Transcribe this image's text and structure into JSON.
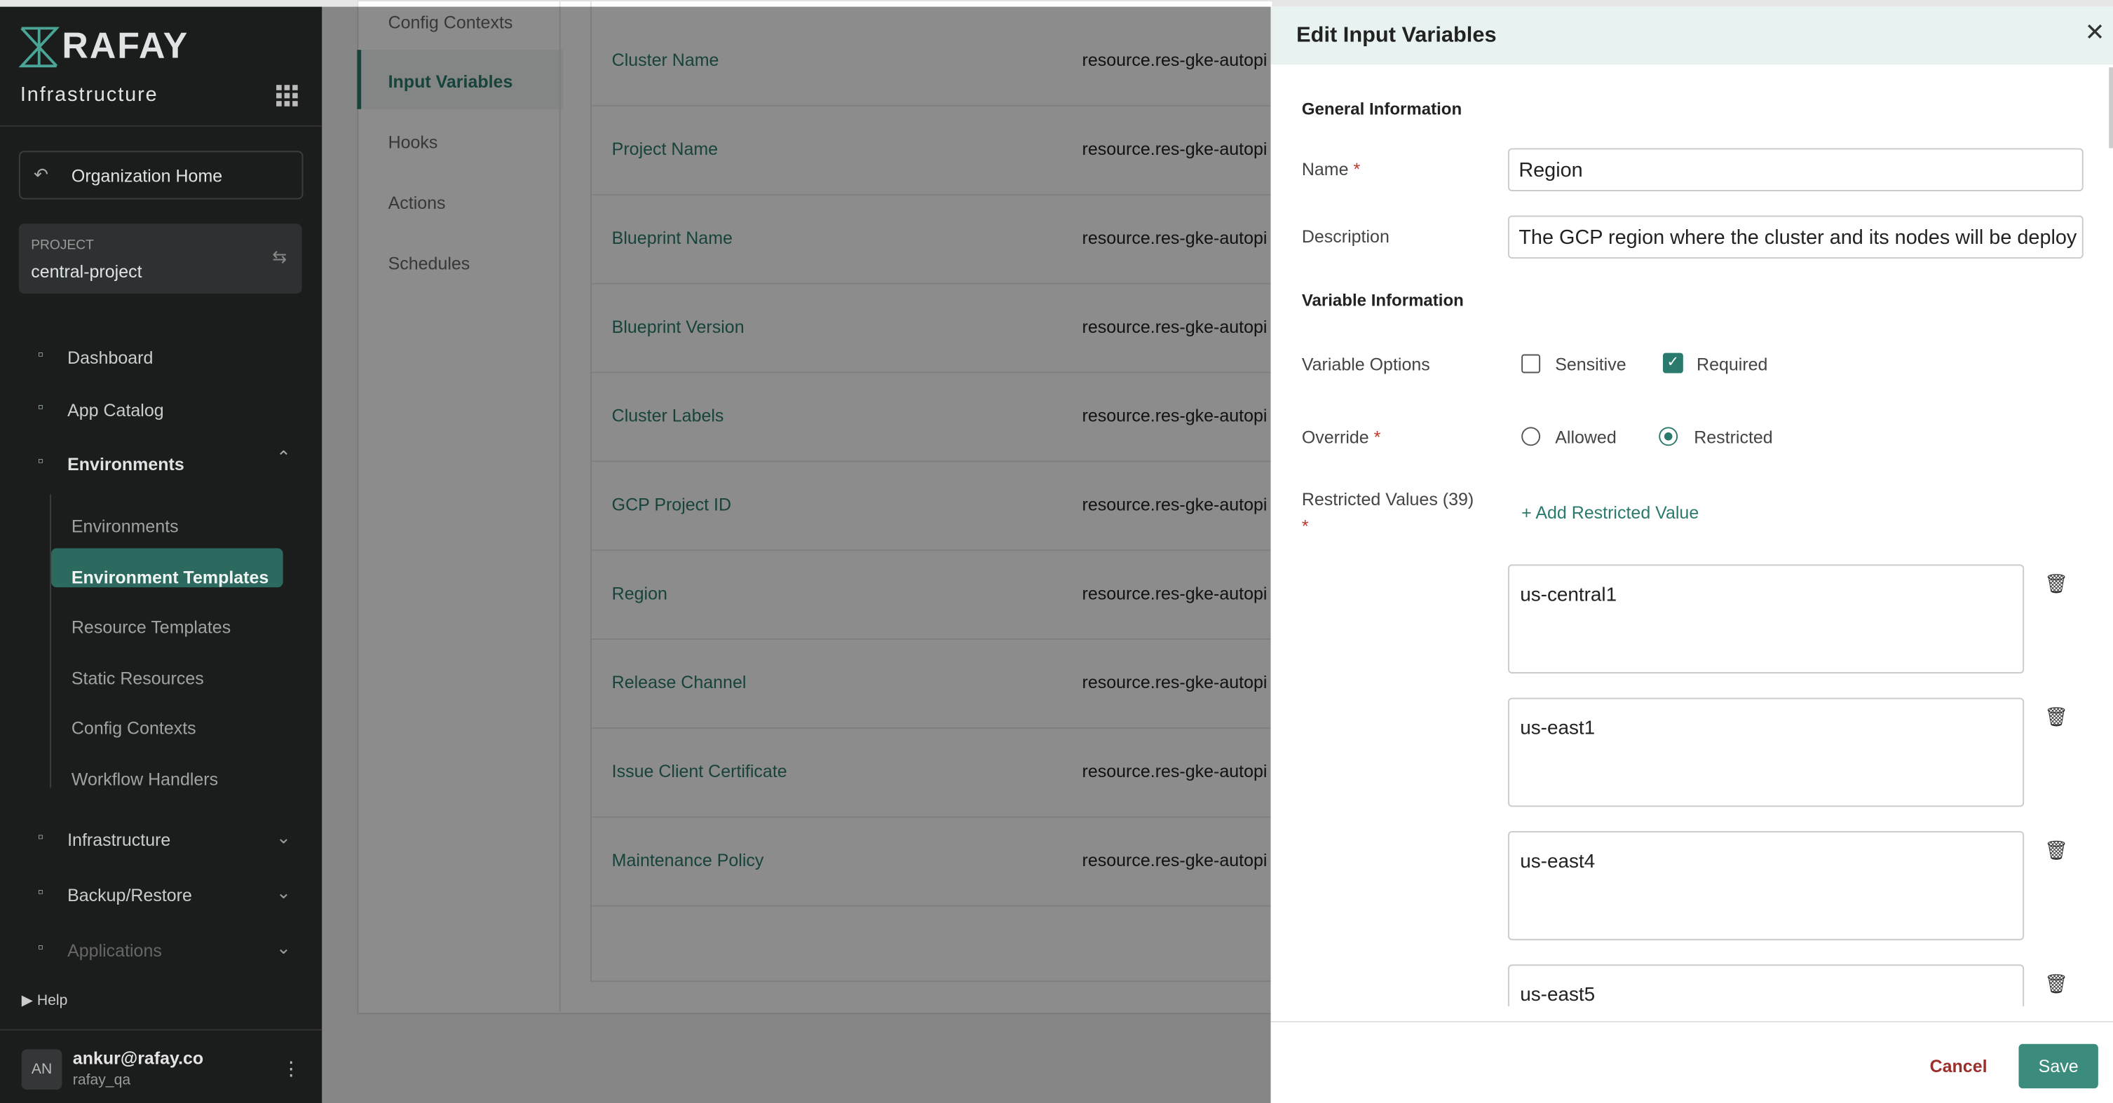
{
  "sidebar": {
    "brand": "RAFAY",
    "app": "Infrastructure",
    "org_home": "Organization Home",
    "project_label": "PROJECT",
    "project_name": "central-project",
    "nav": [
      "Dashboard",
      "App Catalog",
      "Environments"
    ],
    "env_items": [
      "Environments",
      "Environment Templates",
      "Resource Templates",
      "Static Resources",
      "Config Contexts",
      "Workflow Handlers"
    ],
    "nav2": [
      "Infrastructure",
      "Backup/Restore",
      "Applications"
    ],
    "help": "Help",
    "user": {
      "initials": "AN",
      "email": "ankur@rafay.co",
      "org": "rafay_qa"
    }
  },
  "tabs": [
    "Config Contexts",
    "Input Variables",
    "Hooks",
    "Actions",
    "Schedules"
  ],
  "variables": [
    [
      "Cluster Name",
      "resource.res-gke-autopi"
    ],
    [
      "Project Name",
      "resource.res-gke-autopi"
    ],
    [
      "Blueprint Name",
      "resource.res-gke-autopi"
    ],
    [
      "Blueprint Version",
      "resource.res-gke-autopi"
    ],
    [
      "Cluster Labels",
      "resource.res-gke-autopi"
    ],
    [
      "GCP Project ID",
      "resource.res-gke-autopi"
    ],
    [
      "Region",
      "resource.res-gke-autopi"
    ],
    [
      "Release Channel",
      "resource.res-gke-autopi"
    ],
    [
      "Issue Client Certificate",
      "resource.res-gke-autopi"
    ],
    [
      "Maintenance Policy",
      "resource.res-gke-autopi"
    ]
  ],
  "panel": {
    "title": "Edit Input Variables",
    "general": "General Information",
    "name_label": "Name",
    "required_mark": "*",
    "name_value": "Region",
    "desc_label": "Description",
    "desc_value": "The GCP region where the cluster and its nodes will be deploy",
    "var_info": "Variable Information",
    "options_label": "Variable Options",
    "sensitive": "Sensitive",
    "required": "Required",
    "override_label": "Override",
    "allowed": "Allowed",
    "restricted": "Restricted",
    "restricted_values_label": "Restricted Values (39)",
    "add_value": "+ Add Restricted Value",
    "values": [
      "us-central1",
      "us-east1",
      "us-east4",
      "us-east5"
    ],
    "cancel": "Cancel",
    "save": "Save"
  }
}
